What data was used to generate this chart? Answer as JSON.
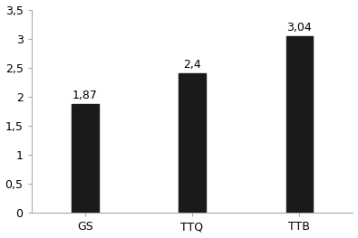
{
  "categories": [
    "GS",
    "TTQ",
    "TTB"
  ],
  "values": [
    1.87,
    2.4,
    3.04
  ],
  "bar_color": "#1a1a1a",
  "bar_width": 0.25,
  "ylim": [
    0,
    3.5
  ],
  "yticks": [
    0,
    0.5,
    1,
    1.5,
    2,
    2.5,
    3,
    3.5
  ],
  "ytick_labels": [
    "0",
    "0,5",
    "1",
    "1,5",
    "2",
    "2,5",
    "3",
    "3,5"
  ],
  "value_labels": [
    "1,87",
    "2,4",
    "3,04"
  ],
  "label_fontsize": 9,
  "tick_fontsize": 9,
  "background_color": "#ffffff",
  "spine_color": "#aaaaaa"
}
